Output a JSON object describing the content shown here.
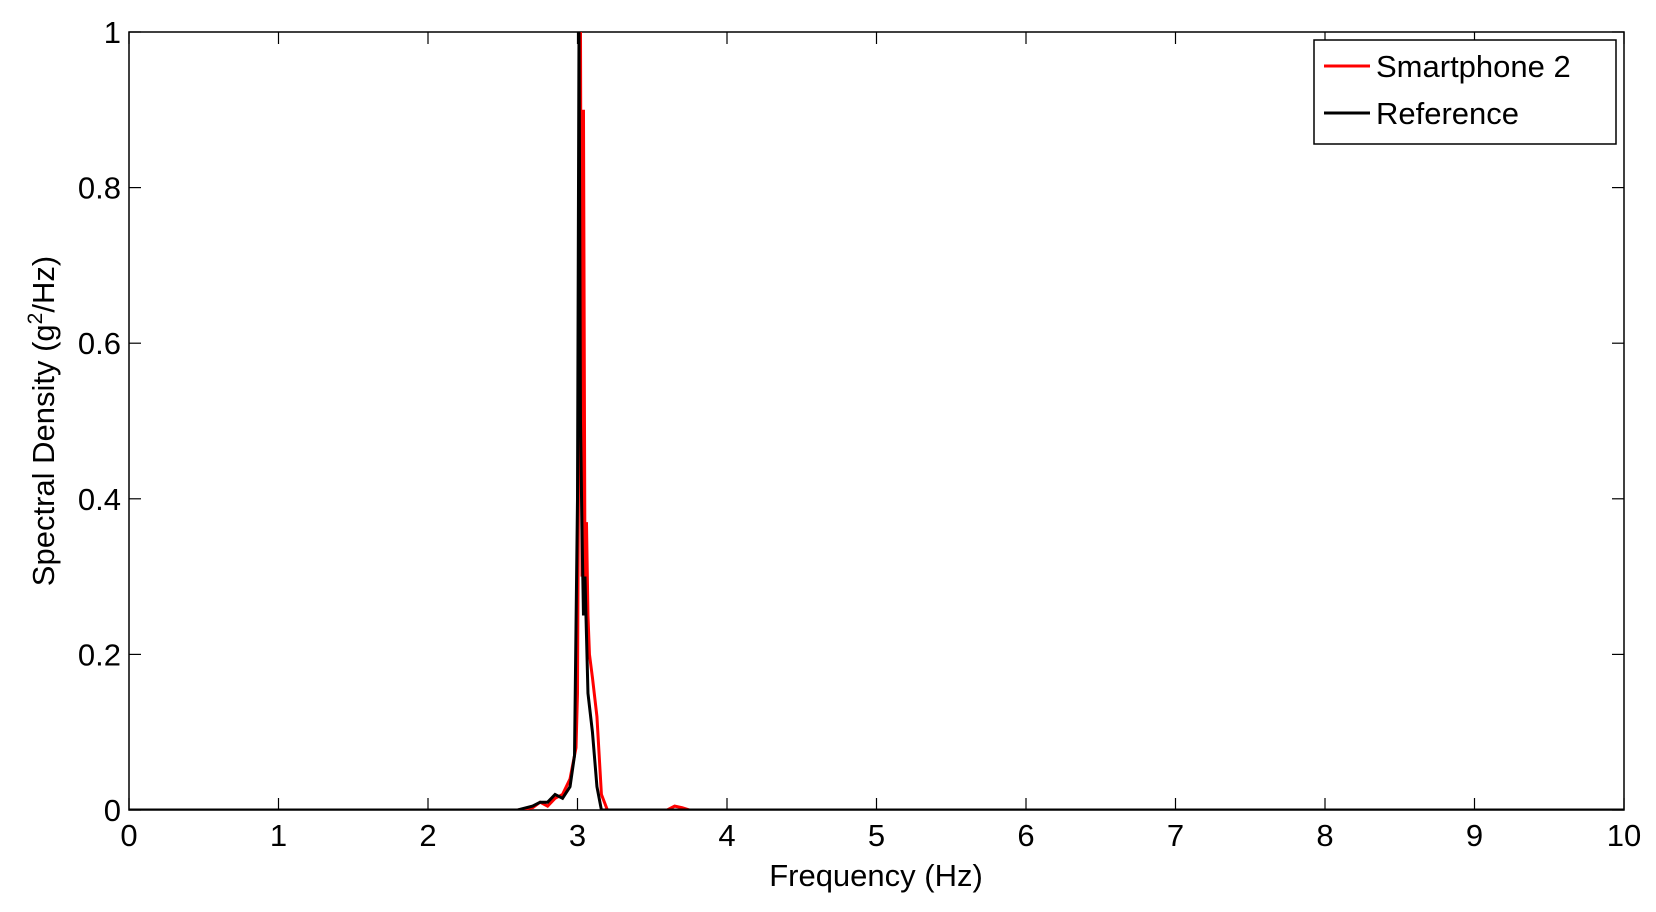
{
  "chart_data": {
    "type": "line",
    "x_label": "Frequency (Hz)",
    "y_label": {
      "main": "Spectral Density (g",
      "superscript": "2",
      "tail": "/Hz)"
    },
    "xlim": [
      0,
      10
    ],
    "ylim": [
      0,
      1
    ],
    "xticks": [
      0,
      1,
      2,
      3,
      4,
      5,
      6,
      7,
      8,
      9,
      10
    ],
    "yticks": [
      0,
      0.2,
      0.4,
      0.6,
      0.8,
      1
    ],
    "legend": "top-right",
    "series": [
      {
        "name": "Smartphone 2",
        "color": "#ff0000",
        "x": [
          0,
          2.6,
          2.7,
          2.75,
          2.8,
          2.85,
          2.9,
          2.95,
          2.99,
          3.0,
          3.02,
          3.03,
          3.04,
          3.05,
          3.06,
          3.07,
          3.08,
          3.1,
          3.13,
          3.16,
          3.2,
          3.6,
          3.65,
          3.7,
          3.75,
          10
        ],
        "values": [
          0,
          0,
          0.003,
          0.01,
          0.005,
          0.015,
          0.02,
          0.04,
          0.08,
          0.15,
          1.0,
          0.3,
          0.9,
          0.3,
          0.37,
          0.25,
          0.2,
          0.17,
          0.12,
          0.02,
          0,
          0,
          0.005,
          0.003,
          0,
          0
        ]
      },
      {
        "name": "Reference",
        "color": "#000000",
        "x": [
          0,
          2.6,
          2.7,
          2.75,
          2.8,
          2.85,
          2.9,
          2.95,
          2.98,
          3.0,
          3.01,
          3.02,
          3.03,
          3.04,
          3.05,
          3.07,
          3.1,
          3.13,
          3.16,
          10
        ],
        "values": [
          0,
          0,
          0.005,
          0.01,
          0.01,
          0.02,
          0.015,
          0.03,
          0.07,
          0.4,
          1.0,
          0.5,
          0.36,
          0.25,
          0.3,
          0.15,
          0.1,
          0.03,
          0,
          0
        ]
      }
    ]
  }
}
